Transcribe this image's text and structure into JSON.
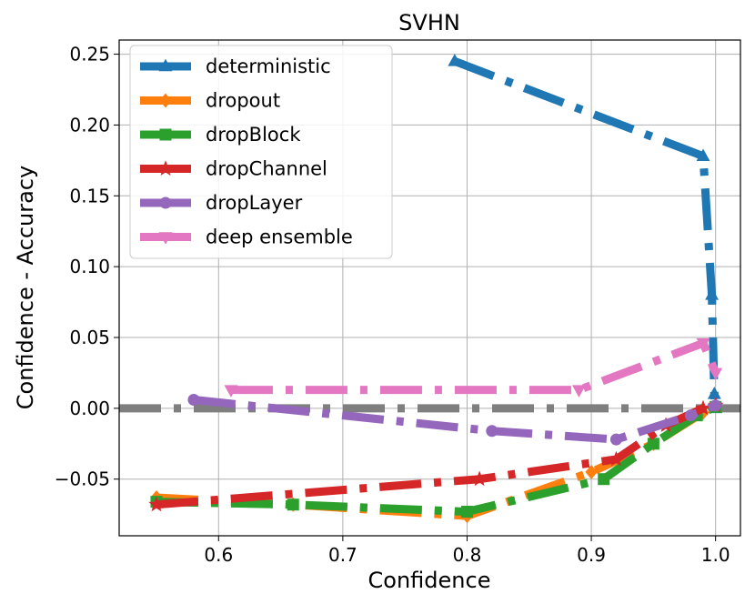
{
  "chart_data": {
    "type": "line",
    "title": "SVHN",
    "xlabel": "Confidence",
    "ylabel": "Confidence - Accuracy",
    "xlim": [
      0.52,
      1.02
    ],
    "ylim": [
      -0.09,
      0.26
    ],
    "xticks": [
      0.6,
      0.7,
      0.8,
      0.9,
      1.0
    ],
    "xtick_labels": [
      "0.6",
      "0.7",
      "0.8",
      "0.9",
      "1.0"
    ],
    "yticks": [
      -0.05,
      0.0,
      0.05,
      0.1,
      0.15,
      0.2,
      0.25
    ],
    "ytick_labels": [
      "−0.05",
      "0.00",
      "0.05",
      "0.10",
      "0.15",
      "0.20",
      "0.25"
    ],
    "grid": true,
    "legend_position": "top-left",
    "reference_line": {
      "y": 0.0,
      "color": "#7f7f7f",
      "style": "dash-dot"
    },
    "series": [
      {
        "name": "deterministic",
        "color": "#1f77b4",
        "marker": "triangle-up",
        "x": [
          0.79,
          0.99,
          0.997,
          0.999,
          1.0
        ],
        "y": [
          0.245,
          0.178,
          0.08,
          0.01,
          0.0
        ]
      },
      {
        "name": "dropout",
        "color": "#ff7f0e",
        "marker": "diamond",
        "x": [
          0.55,
          0.66,
          0.8,
          0.9,
          0.95,
          0.99,
          1.0
        ],
        "y": [
          -0.063,
          -0.068,
          -0.076,
          -0.045,
          -0.025,
          -0.003,
          0.002
        ]
      },
      {
        "name": "dropBlock",
        "color": "#2ca02c",
        "marker": "square",
        "x": [
          0.55,
          0.66,
          0.8,
          0.91,
          0.95,
          0.985,
          1.0
        ],
        "y": [
          -0.066,
          -0.068,
          -0.073,
          -0.05,
          -0.025,
          -0.005,
          0.001
        ]
      },
      {
        "name": "dropChannel",
        "color": "#d62728",
        "marker": "star",
        "x": [
          0.55,
          0.81,
          0.92,
          0.96,
          0.99,
          1.0
        ],
        "y": [
          -0.068,
          -0.05,
          -0.036,
          -0.012,
          0.0,
          0.002
        ]
      },
      {
        "name": "dropLayer",
        "color": "#9467bd",
        "marker": "circle",
        "x": [
          0.58,
          0.82,
          0.92,
          0.98,
          1.0
        ],
        "y": [
          0.006,
          -0.016,
          -0.022,
          -0.005,
          0.002
        ]
      },
      {
        "name": "deep ensemble",
        "color": "#e377c2",
        "marker": "triangle-down",
        "x": [
          0.61,
          0.89,
          0.99,
          1.0
        ],
        "y": [
          0.013,
          0.013,
          0.046,
          0.025
        ]
      }
    ]
  }
}
